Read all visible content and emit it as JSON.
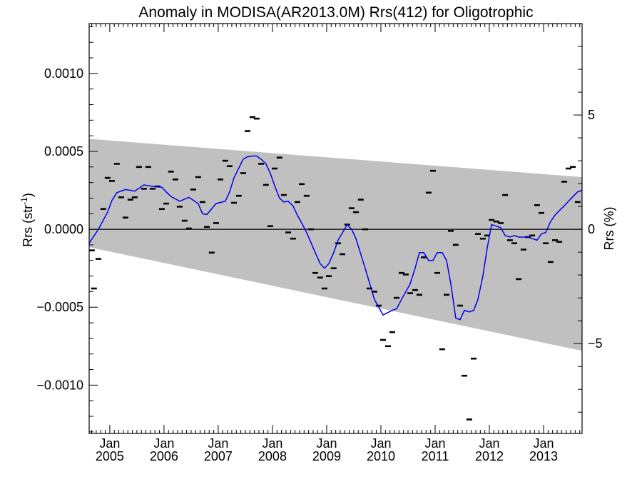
{
  "chart_data": {
    "type": "scatter",
    "title": "Anomaly in MODISA(AR2013.0M) Rrs(412) for Oligotrophic",
    "ylabel_left": "Rrs (str",
    "ylabel_left_sup": "-1",
    "ylabel_left_end": ")",
    "ylabel_right": "Rrs (%)",
    "xlim": [
      2004.62,
      2013.71
    ],
    "ylim_left": [
      -0.00131,
      0.00132
    ],
    "ylim_right": [
      -8.93,
      9.0
    ],
    "zero_line": true,
    "grid": false,
    "x_ticks": [
      {
        "month": "Jan",
        "year": "2005",
        "x": 2005.0
      },
      {
        "month": "Jan",
        "year": "2006",
        "x": 2006.0
      },
      {
        "month": "Jan",
        "year": "2007",
        "x": 2007.0
      },
      {
        "month": "Jan",
        "year": "2008",
        "x": 2008.0
      },
      {
        "month": "Jan",
        "year": "2009",
        "x": 2009.0
      },
      {
        "month": "Jan",
        "year": "2010",
        "x": 2010.0
      },
      {
        "month": "Jan",
        "year": "2011",
        "x": 2011.0
      },
      {
        "month": "Jan",
        "year": "2012",
        "x": 2012.0
      },
      {
        "month": "Jan",
        "year": "2013",
        "x": 2013.0
      }
    ],
    "y_ticks_left": [
      {
        "value": 0.001,
        "label": "0.0010"
      },
      {
        "value": 0.0005,
        "label": "0.0005"
      },
      {
        "value": 0.0,
        "label": "0.0000"
      },
      {
        "value": -0.0005,
        "label": "−0.0005"
      },
      {
        "value": -0.001,
        "label": "−0.0010"
      }
    ],
    "y_ticks_right": [
      {
        "value": 5,
        "label": "5"
      },
      {
        "value": 0,
        "label": "0"
      },
      {
        "value": -5,
        "label": "−5"
      }
    ],
    "band": {
      "color": "#c0c0c0",
      "x": [
        2004.62,
        2013.71
      ],
      "upper": [
        0.00058,
        0.000335
      ],
      "lower": [
        -0.000115,
        -0.00078
      ]
    },
    "series": [
      {
        "kind": "points",
        "color": "#000000",
        "points": [
          [
            2004.67,
            -0.000135
          ],
          [
            2004.71,
            -0.00038
          ],
          [
            2004.79,
            -0.00019
          ],
          [
            2004.88,
            0.00013
          ],
          [
            2004.96,
            0.00033
          ],
          [
            2005.04,
            0.00031
          ],
          [
            2005.13,
            0.00042
          ],
          [
            2005.21,
            0.000205
          ],
          [
            2005.29,
            7.5e-05
          ],
          [
            2005.38,
            0.00019
          ],
          [
            2005.46,
            0.000205
          ],
          [
            2005.54,
            0.0004
          ],
          [
            2005.63,
            0.00026
          ],
          [
            2005.71,
            0.0004
          ],
          [
            2005.79,
            0.00026
          ],
          [
            2005.88,
            0.000275
          ],
          [
            2005.96,
            0.00013
          ],
          [
            2006.04,
            0.000165
          ],
          [
            2006.13,
            0.00037
          ],
          [
            2006.21,
            0.00032
          ],
          [
            2006.29,
            0.000145
          ],
          [
            2006.38,
            5.5e-05
          ],
          [
            2006.46,
            5e-06
          ],
          [
            2006.54,
            0.000255
          ],
          [
            2006.63,
            0.000335
          ],
          [
            2006.71,
            0.000175
          ],
          [
            2006.79,
            1.5e-05
          ],
          [
            2006.88,
            -0.00015
          ],
          [
            2006.96,
            4e-05
          ],
          [
            2007.04,
            0.00032
          ],
          [
            2007.13,
            0.00044
          ],
          [
            2007.21,
            0.000405
          ],
          [
            2007.29,
            0.00017
          ],
          [
            2007.38,
            0.000215
          ],
          [
            2007.46,
            0.00036
          ],
          [
            2007.54,
            0.00063
          ],
          [
            2007.63,
            0.00072
          ],
          [
            2007.71,
            0.00071
          ],
          [
            2007.79,
            0.00042
          ],
          [
            2007.88,
            0.000285
          ],
          [
            2007.96,
            2e-05
          ],
          [
            2008.04,
            0.00039
          ],
          [
            2008.13,
            0.00046
          ],
          [
            2008.21,
            0.00022
          ],
          [
            2008.29,
            -2e-05
          ],
          [
            2008.38,
            -6e-05
          ],
          [
            2008.46,
            0.000175
          ],
          [
            2008.54,
            0.00029
          ],
          [
            2008.63,
            0.000215
          ],
          [
            2008.71,
            0.0
          ],
          [
            2008.79,
            -0.00028
          ],
          [
            2008.88,
            -0.00031
          ],
          [
            2008.96,
            -0.00038
          ],
          [
            2009.04,
            -0.0003
          ],
          [
            2009.13,
            -0.00025
          ],
          [
            2009.21,
            -9e-05
          ],
          [
            2009.29,
            -0.00016
          ],
          [
            2009.38,
            3e-05
          ],
          [
            2009.46,
            0.000135
          ],
          [
            2009.54,
            0.00011
          ],
          [
            2009.63,
            0.00019
          ],
          [
            2009.71,
            0.0
          ],
          [
            2009.79,
            -0.00038
          ],
          [
            2009.88,
            -0.0004
          ],
          [
            2009.96,
            -0.00049
          ],
          [
            2010.04,
            -0.00071
          ],
          [
            2010.13,
            -0.00075
          ],
          [
            2010.21,
            -0.00066
          ],
          [
            2010.29,
            -0.00044
          ],
          [
            2010.38,
            -0.00028
          ],
          [
            2010.46,
            -0.00029
          ],
          [
            2010.54,
            -0.00041
          ],
          [
            2010.63,
            -0.00039
          ],
          [
            2010.71,
            -0.00042
          ],
          [
            2010.79,
            -0.00018
          ],
          [
            2010.88,
            0.000235
          ],
          [
            2010.96,
            0.000375
          ],
          [
            2011.04,
            -0.00028
          ],
          [
            2011.13,
            -0.00077
          ],
          [
            2011.21,
            -0.00042
          ],
          [
            2011.29,
            -1e-05
          ],
          [
            2011.38,
            -0.0001
          ],
          [
            2011.46,
            -0.00049
          ],
          [
            2011.54,
            -0.00094
          ],
          [
            2011.63,
            -0.00122
          ],
          [
            2011.71,
            -0.00083
          ],
          [
            2011.79,
            -3e-05
          ],
          [
            2011.88,
            -6e-05
          ],
          [
            2011.96,
            -4e-05
          ],
          [
            2012.04,
            6e-05
          ],
          [
            2012.13,
            5e-05
          ],
          [
            2012.21,
            4e-05
          ],
          [
            2012.29,
            0.00022
          ],
          [
            2012.38,
            -7e-05
          ],
          [
            2012.46,
            -9e-05
          ],
          [
            2012.54,
            -0.00032
          ],
          [
            2012.63,
            -0.00013
          ],
          [
            2012.71,
            -5e-05
          ],
          [
            2012.79,
            -4e-05
          ],
          [
            2012.88,
            0.000155
          ],
          [
            2012.96,
            0.000105
          ],
          [
            2013.04,
            -9e-05
          ],
          [
            2013.13,
            -0.00021
          ],
          [
            2013.21,
            -7e-05
          ],
          [
            2013.29,
            -8e-05
          ],
          [
            2013.38,
            0.000305
          ],
          [
            2013.46,
            0.00039
          ],
          [
            2013.54,
            0.0004
          ],
          [
            2013.63,
            0.000175
          ]
        ]
      },
      {
        "kind": "line",
        "color": "#0000ee",
        "points": [
          [
            2004.62,
            -9e-05
          ],
          [
            2004.79,
            0.0
          ],
          [
            2004.96,
            0.00011
          ],
          [
            2005.04,
            0.000185
          ],
          [
            2005.13,
            0.000235
          ],
          [
            2005.29,
            0.000255
          ],
          [
            2005.46,
            0.000245
          ],
          [
            2005.63,
            0.000285
          ],
          [
            2005.79,
            0.000275
          ],
          [
            2005.96,
            0.00027
          ],
          [
            2006.04,
            0.00024
          ],
          [
            2006.13,
            0.00021
          ],
          [
            2006.29,
            0.00018
          ],
          [
            2006.46,
            0.000205
          ],
          [
            2006.63,
            0.000165
          ],
          [
            2006.71,
            0.0001
          ],
          [
            2006.79,
            9.5e-05
          ],
          [
            2006.96,
            0.000165
          ],
          [
            2007.13,
            0.00018
          ],
          [
            2007.21,
            0.00024
          ],
          [
            2007.29,
            0.00033
          ],
          [
            2007.46,
            0.00045
          ],
          [
            2007.54,
            0.000465
          ],
          [
            2007.63,
            0.00047
          ],
          [
            2007.71,
            0.00047
          ],
          [
            2007.79,
            0.00045
          ],
          [
            2007.88,
            0.00042
          ],
          [
            2007.96,
            0.00036
          ],
          [
            2008.04,
            0.00028
          ],
          [
            2008.13,
            0.0002
          ],
          [
            2008.21,
            0.000175
          ],
          [
            2008.29,
            0.00018
          ],
          [
            2008.38,
            0.00015
          ],
          [
            2008.46,
            9e-05
          ],
          [
            2008.54,
            4e-05
          ],
          [
            2008.63,
            -2e-05
          ],
          [
            2008.79,
            -0.00015
          ],
          [
            2008.88,
            -0.00022
          ],
          [
            2008.96,
            -0.00025
          ],
          [
            2009.04,
            -0.00022
          ],
          [
            2009.13,
            -0.00015
          ],
          [
            2009.21,
            -7e-05
          ],
          [
            2009.38,
            3e-05
          ],
          [
            2009.46,
            0.0
          ],
          [
            2009.54,
            -6e-05
          ],
          [
            2009.71,
            -0.00025
          ],
          [
            2009.88,
            -0.00045
          ],
          [
            2010.04,
            -0.00055
          ],
          [
            2010.21,
            -0.00052
          ],
          [
            2010.29,
            -0.00051
          ],
          [
            2010.38,
            -0.00045
          ],
          [
            2010.54,
            -0.00035
          ],
          [
            2010.63,
            -0.00025
          ],
          [
            2010.71,
            -0.00015
          ],
          [
            2010.79,
            -0.00015
          ],
          [
            2010.88,
            -0.0002
          ],
          [
            2010.96,
            -0.0002
          ],
          [
            2011.04,
            -0.00015
          ],
          [
            2011.13,
            -0.00015
          ],
          [
            2011.21,
            -0.0002
          ],
          [
            2011.29,
            -0.00035
          ],
          [
            2011.38,
            -0.00057
          ],
          [
            2011.46,
            -0.00058
          ],
          [
            2011.54,
            -0.00052
          ],
          [
            2011.63,
            -0.00053
          ],
          [
            2011.71,
            -0.00052
          ],
          [
            2011.79,
            -0.00045
          ],
          [
            2011.88,
            -0.0003
          ],
          [
            2011.96,
            -0.00012
          ],
          [
            2012.04,
            3e-05
          ],
          [
            2012.13,
            2e-05
          ],
          [
            2012.21,
            1e-05
          ],
          [
            2012.29,
            -4e-05
          ],
          [
            2012.38,
            -5e-05
          ],
          [
            2012.46,
            -4e-05
          ],
          [
            2012.54,
            -5e-05
          ],
          [
            2012.63,
            -5e-05
          ],
          [
            2012.71,
            -5e-05
          ],
          [
            2012.79,
            -6e-05
          ],
          [
            2012.88,
            -7e-05
          ],
          [
            2012.96,
            -3e-05
          ],
          [
            2013.04,
            -2e-05
          ],
          [
            2013.13,
            5e-05
          ],
          [
            2013.21,
            9e-05
          ],
          [
            2013.29,
            0.00012
          ],
          [
            2013.38,
            0.00015
          ],
          [
            2013.46,
            0.00018
          ],
          [
            2013.54,
            0.00021
          ],
          [
            2013.63,
            0.00024
          ],
          [
            2013.71,
            0.00025
          ]
        ]
      }
    ]
  }
}
